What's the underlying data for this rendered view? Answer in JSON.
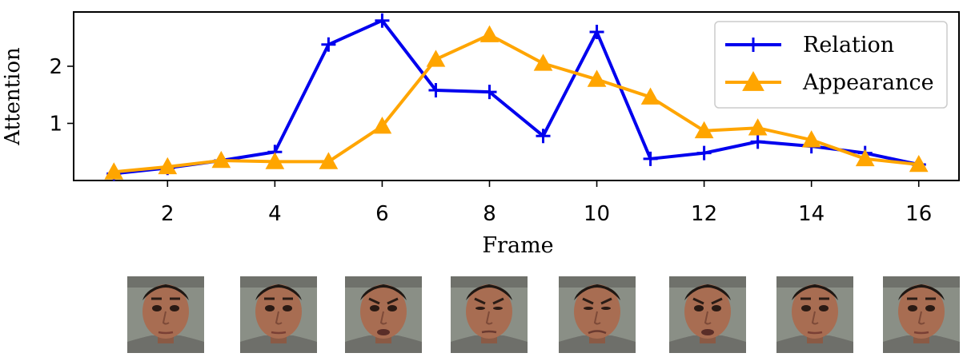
{
  "chart_data": {
    "type": "line",
    "title": "",
    "xlabel": "Frame",
    "ylabel": "Attention",
    "xlim": [
      0.25,
      16.75
    ],
    "ylim": [
      0,
      2.95
    ],
    "xticks": [
      2,
      4,
      6,
      8,
      10,
      12,
      14,
      16
    ],
    "yticks": [
      1,
      2
    ],
    "grid": false,
    "legend_position": "top-right",
    "x": [
      1,
      2,
      3,
      4,
      5,
      6,
      7,
      8,
      9,
      10,
      11,
      12,
      13,
      14,
      15,
      16
    ],
    "series": [
      {
        "name": "Relation",
        "color": "#0000ee",
        "marker": "plus",
        "values": [
          0.12,
          0.22,
          0.35,
          0.5,
          2.38,
          2.8,
          1.58,
          1.55,
          0.78,
          2.6,
          0.38,
          0.48,
          0.68,
          0.6,
          0.48,
          0.28
        ]
      },
      {
        "name": "Appearance",
        "color": "#ffa500",
        "marker": "triangle",
        "values": [
          0.15,
          0.24,
          0.35,
          0.33,
          0.33,
          0.95,
          2.12,
          2.55,
          2.05,
          1.77,
          1.46,
          0.87,
          0.92,
          0.71,
          0.38,
          0.28
        ]
      }
    ]
  },
  "faces": [
    {
      "name": "face-1",
      "expression": "neutral"
    },
    {
      "name": "face-2",
      "expression": "neutral"
    },
    {
      "name": "face-3",
      "expression": "frown-open"
    },
    {
      "name": "face-4",
      "expression": "squint-frown"
    },
    {
      "name": "face-5",
      "expression": "grimace"
    },
    {
      "name": "face-6",
      "expression": "frown-open"
    },
    {
      "name": "face-7",
      "expression": "neutral"
    },
    {
      "name": "face-8",
      "expression": "neutral"
    }
  ]
}
